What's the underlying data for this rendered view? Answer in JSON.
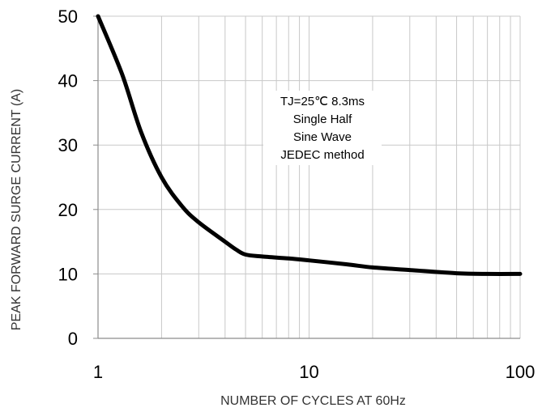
{
  "chart_data": {
    "type": "line",
    "xlabel": "NUMBER OF CYCLES AT 60Hz",
    "ylabel": "PEAK FORWARD SURGE CURRENT (A)",
    "x_scale": "log",
    "xlim": [
      1,
      100
    ],
    "ylim": [
      0,
      50
    ],
    "x_ticks": [
      1,
      10,
      100
    ],
    "x_tick_labels": [
      "1",
      "10",
      "100"
    ],
    "y_ticks": [
      0,
      10,
      20,
      30,
      40,
      50
    ],
    "y_tick_labels": [
      "0",
      "10",
      "20",
      "30",
      "40",
      "50"
    ],
    "grid": true,
    "annotation": [
      "TJ=25℃ 8.3ms",
      "Single Half",
      "Sine Wave",
      "JEDEC method"
    ],
    "series": [
      {
        "color": "#000000",
        "x": [
          1,
          1.3,
          1.6,
          2,
          2.5,
          3,
          4,
          4.5,
          5,
          6,
          8,
          10,
          15,
          20,
          30,
          50,
          70,
          100
        ],
        "y": [
          50,
          41,
          32,
          25,
          20.5,
          18,
          15,
          13.8,
          13,
          12.7,
          12.4,
          12.1,
          11.5,
          11,
          10.6,
          10.1,
          10,
          10
        ]
      }
    ]
  }
}
